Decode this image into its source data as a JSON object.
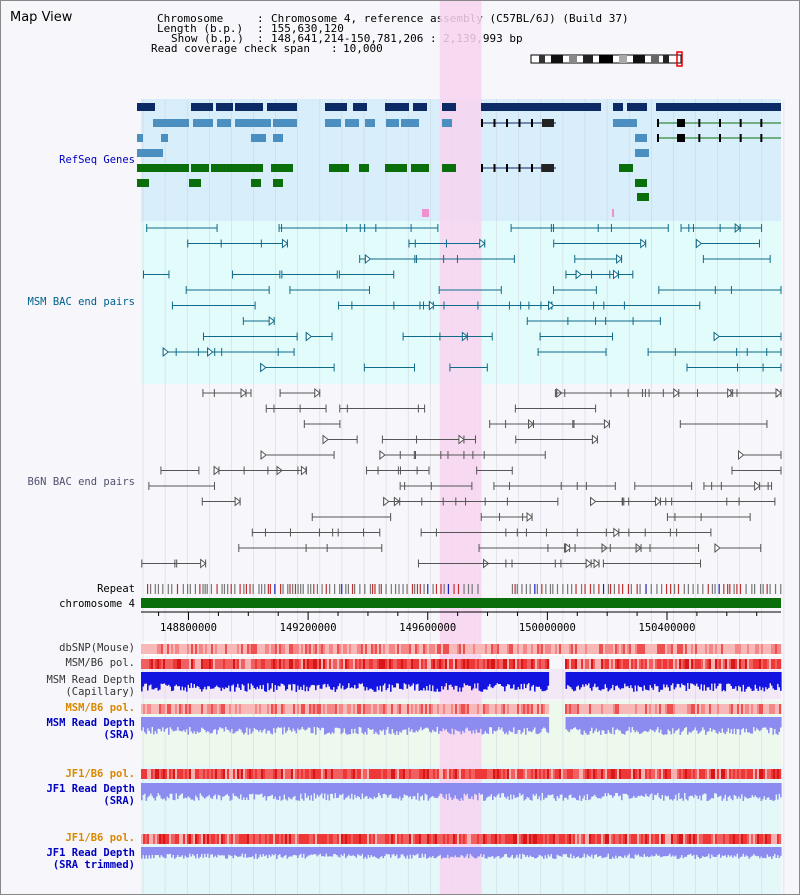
{
  "viewer": {
    "title": "Map View"
  },
  "chromosome_info": {
    "chromosome_label": "Chromosome",
    "chromosome_value": "Chromosome 4, reference assembly (C57BL/6J) (Build 37)",
    "length_label": "Length (b.p.)",
    "length_value": "155,630,120",
    "show_label": "Show (b.p.)",
    "show_value": "148,641,214-150,781,206 : 2,139,993 bp",
    "coverage_label": "Read coverage check span",
    "coverage_value": "10,000"
  },
  "tracks": {
    "refseq": "RefSeq Genes",
    "msm_bac": "MSM BAC end pairs",
    "b6n_bac": "B6N BAC end pairs",
    "repeat": "Repeat",
    "chromosome": "chromosome 4",
    "dbsnp": "dbSNP(Mouse)",
    "msm_b6_pol": "MSM/B6 pol.",
    "msm_depth_cap_1": "MSM Read Depth",
    "msm_depth_cap_2": "(Capillary)",
    "msm_b6_pol_sra": "MSM/B6 pol.",
    "msm_depth_sra_1": "MSM Read Depth",
    "msm_depth_sra_2": "(SRA)",
    "jf1_b6_pol": "JF1/B6 pol.",
    "jf1_depth_sra_1": "JF1 Read Depth",
    "jf1_depth_sra_2": "(SRA)",
    "jf1_b6_pol_trim": "JF1/B6 pol.",
    "jf1_depth_trim_1": "JF1 Read Depth",
    "jf1_depth_trim_2": "(SRA trimmed)"
  },
  "axis": {
    "ticks": [
      "148800000",
      "149200000",
      "149600000",
      "150000000",
      "150400000"
    ],
    "tick_values": [
      148800000,
      149200000,
      149600000,
      150000000,
      150400000
    ],
    "view_start": 148641214,
    "view_end": 150781206
  },
  "highlight": {
    "start": 149640000,
    "end": 149780000
  },
  "colors": {
    "refseq_bg": "#d8eefa",
    "msm_bg": "#e2fbfb",
    "b6n_bg": "#f6f6fb",
    "highlight": "#f8d4f0",
    "gene_navy": "#0b2a66",
    "gene_steel": "#4b8fc0",
    "gene_green": "#0a6f0a",
    "msm_pair": "#106a8a",
    "b6n_pair": "#555555",
    "chromosome_bar": "#0a6f0a",
    "depth_blue": "#1414e0",
    "depth_lilac": "#8c8cf0"
  }
}
